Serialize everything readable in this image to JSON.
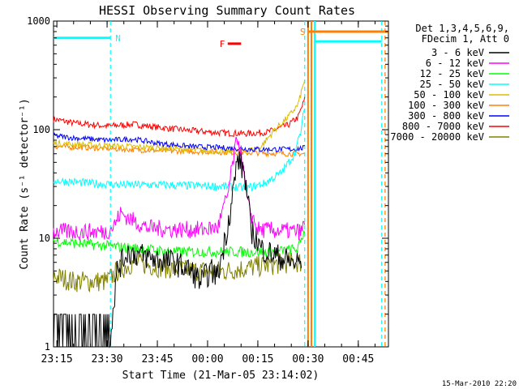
{
  "chart_data": {
    "type": "line",
    "title": "HESSI Observing Summary Count Rates",
    "xlabel": "Start Time (21-Mar-05 23:14:02)",
    "ylabel": "Count Rate (s⁻¹ detector⁻¹)",
    "yscale": "log",
    "ylim": [
      1,
      1000
    ],
    "xlim": [
      "23:14",
      "00:54"
    ],
    "x_tick_labels": [
      "23:15",
      "23:30",
      "23:45",
      "00:00",
      "00:15",
      "00:30",
      "00:45"
    ],
    "y_tick_labels": [
      "1",
      "10",
      "100",
      "1000"
    ],
    "grid": false,
    "legend_position": "right",
    "legend_header": [
      "Det 1,3,4,5,6,9,",
      "FDecim 1, Att 0"
    ],
    "timestamp": "15-Mar-2010 22:20",
    "series": [
      {
        "name": "3 - 6 keV",
        "color": "#000000",
        "points": [
          [
            "23:14",
            1.4
          ],
          [
            "23:25",
            1.4
          ],
          [
            "23:31",
            1.3
          ],
          [
            "23:33",
            5.0
          ],
          [
            "23:36",
            7.5
          ],
          [
            "23:40",
            7.0
          ],
          [
            "23:44",
            6.5
          ],
          [
            "23:50",
            6.0
          ],
          [
            "23:55",
            5.0
          ],
          [
            "23:58",
            4.0
          ],
          [
            "00:01",
            5.0
          ],
          [
            "00:03",
            4.5
          ],
          [
            "00:05",
            9.0
          ],
          [
            "00:07",
            20.0
          ],
          [
            "00:09",
            55.0
          ],
          [
            "00:11",
            40.0
          ],
          [
            "00:13",
            12.0
          ],
          [
            "00:16",
            8.0
          ],
          [
            "00:20",
            7.0
          ],
          [
            "00:25",
            6.0
          ],
          [
            "00:28",
            6.0
          ]
        ]
      },
      {
        "name": "6 - 12 keV",
        "color": "#ff00ff",
        "points": [
          [
            "23:14",
            11.5
          ],
          [
            "23:30",
            11.5
          ],
          [
            "23:32",
            13.0
          ],
          [
            "23:34",
            17.0
          ],
          [
            "23:37",
            15.0
          ],
          [
            "23:42",
            12.5
          ],
          [
            "23:50",
            12.0
          ],
          [
            "23:58",
            12.0
          ],
          [
            "00:03",
            12.5
          ],
          [
            "00:06",
            25.0
          ],
          [
            "00:08",
            60.0
          ],
          [
            "00:09",
            85.0
          ],
          [
            "00:10",
            60.0
          ],
          [
            "00:12",
            20.0
          ],
          [
            "00:15",
            12.0
          ],
          [
            "00:28",
            11.5
          ],
          [
            "00:29",
            14.0
          ]
        ]
      },
      {
        "name": "12 - 25 keV",
        "color": "#00ff00",
        "points": [
          [
            "23:14",
            9.5
          ],
          [
            "23:20",
            9.0
          ],
          [
            "23:30",
            8.5
          ],
          [
            "23:40",
            8.0
          ],
          [
            "23:50",
            7.5
          ],
          [
            "00:00",
            7.5
          ],
          [
            "00:10",
            7.5
          ],
          [
            "00:20",
            7.5
          ],
          [
            "00:27",
            8.0
          ],
          [
            "00:29",
            12.0
          ]
        ]
      },
      {
        "name": "25 - 50 keV",
        "color": "#00ffff",
        "points": [
          [
            "23:14",
            34.0
          ],
          [
            "23:25",
            32.0
          ],
          [
            "23:35",
            31.0
          ],
          [
            "23:45",
            31.0
          ],
          [
            "23:55",
            30.5
          ],
          [
            "00:05",
            30.0
          ],
          [
            "00:12",
            29.0
          ],
          [
            "00:17",
            32.0
          ],
          [
            "00:22",
            40.0
          ],
          [
            "00:26",
            60.0
          ],
          [
            "00:28",
            100.0
          ],
          [
            "00:29",
            170.0
          ]
        ]
      },
      {
        "name": "50 - 100 keV",
        "color": "#ddbb00",
        "points": [
          [
            "23:14",
            75.0
          ],
          [
            "23:25",
            72.0
          ],
          [
            "23:35",
            70.0
          ],
          [
            "23:45",
            68.0
          ],
          [
            "23:55",
            65.0
          ],
          [
            "00:05",
            63.0
          ],
          [
            "00:12",
            63.0
          ],
          [
            "00:16",
            70.0
          ],
          [
            "00:20",
            100.0
          ],
          [
            "00:24",
            130.0
          ],
          [
            "00:27",
            170.0
          ],
          [
            "00:29",
            290.0
          ]
        ]
      },
      {
        "name": "100 - 300 keV",
        "color": "#ff8000",
        "points": [
          [
            "23:14",
            70.0
          ],
          [
            "23:25",
            68.0
          ],
          [
            "23:35",
            66.0
          ],
          [
            "23:45",
            64.0
          ],
          [
            "23:55",
            63.0
          ],
          [
            "00:05",
            62.0
          ],
          [
            "00:15",
            61.0
          ],
          [
            "00:25",
            60.0
          ],
          [
            "00:29",
            60.0
          ]
        ]
      },
      {
        "name": "300 - 800 keV",
        "color": "#0000ff",
        "points": [
          [
            "23:14",
            88.0
          ],
          [
            "23:20",
            84.0
          ],
          [
            "23:30",
            80.0
          ],
          [
            "23:38",
            82.0
          ],
          [
            "23:45",
            75.0
          ],
          [
            "23:55",
            70.0
          ],
          [
            "00:05",
            68.0
          ],
          [
            "00:15",
            66.0
          ],
          [
            "00:25",
            66.0
          ],
          [
            "00:29",
            68.0
          ]
        ]
      },
      {
        "name": "800 - 7000 keV",
        "color": "#ff0000",
        "points": [
          [
            "23:14",
            125.0
          ],
          [
            "23:20",
            115.0
          ],
          [
            "23:30",
            108.0
          ],
          [
            "23:38",
            112.0
          ],
          [
            "23:45",
            105.0
          ],
          [
            "23:55",
            98.0
          ],
          [
            "00:05",
            93.0
          ],
          [
            "00:12",
            92.0
          ],
          [
            "00:18",
            95.0
          ],
          [
            "00:24",
            110.0
          ],
          [
            "00:27",
            130.0
          ],
          [
            "00:29",
            190.0
          ]
        ]
      },
      {
        "name": "7000 - 20000 keV",
        "color": "#808000",
        "points": [
          [
            "23:14",
            4.5
          ],
          [
            "23:20",
            4.0
          ],
          [
            "23:30",
            4.0
          ],
          [
            "23:33",
            5.0
          ],
          [
            "23:38",
            6.0
          ],
          [
            "23:45",
            5.5
          ],
          [
            "23:55",
            5.0
          ],
          [
            "00:05",
            5.0
          ],
          [
            "00:15",
            5.5
          ],
          [
            "00:25",
            6.0
          ],
          [
            "00:28",
            6.0
          ]
        ]
      }
    ],
    "annotations": [
      {
        "label": "N",
        "color": "#00ffff",
        "start": "23:14",
        "end": "23:31",
        "y": 700
      },
      {
        "label": "F",
        "color": "#ff0000",
        "start": "00:06",
        "end": "00:10",
        "y": 620
      },
      {
        "label": "S",
        "color": "#ff8000",
        "start": "00:30",
        "end": "00:54",
        "y": 800
      }
    ],
    "vertical_lines": [
      {
        "time": "23:31",
        "color": "#00ffff",
        "style": "dashed"
      },
      {
        "time": "00:29",
        "color": "#00ffff",
        "style": "dashed"
      },
      {
        "time": "00:30",
        "color": "#ff8000",
        "style": "solid"
      },
      {
        "time": "00:31",
        "color": "#ff8000",
        "style": "solid"
      },
      {
        "time": "00:32",
        "color": "#00ffff",
        "style": "solid"
      },
      {
        "time": "00:52",
        "color": "#00ffff",
        "style": "dashed"
      },
      {
        "time": "00:53",
        "color": "#ff8000",
        "style": "dashed"
      }
    ],
    "cyan_step": {
      "time": "00:32",
      "y": 650,
      "end": "00:52"
    }
  }
}
